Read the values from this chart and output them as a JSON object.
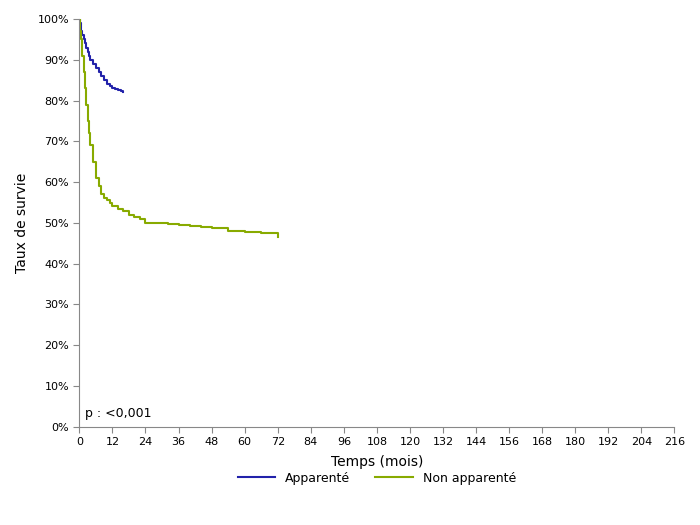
{
  "xlabel": "Temps (mois)",
  "ylabel": "Taux de survie",
  "xlim": [
    0,
    216
  ],
  "ylim": [
    0,
    1.0
  ],
  "xticks": [
    0,
    12,
    24,
    36,
    48,
    60,
    72,
    84,
    96,
    108,
    120,
    132,
    144,
    156,
    168,
    180,
    192,
    204,
    216
  ],
  "yticks": [
    0.0,
    0.1,
    0.2,
    0.3,
    0.4,
    0.5,
    0.6,
    0.7,
    0.8,
    0.9,
    1.0
  ],
  "annotation": "p : <0,001",
  "legend_labels": [
    "Apparenté",
    "Non apparenté"
  ],
  "color_apparente": "#2222aa",
  "color_non_apparente": "#88aa00",
  "background": "#ffffff",
  "apparente_x": [
    0,
    0.4,
    0.7,
    1.0,
    1.5,
    2.0,
    2.5,
    3.0,
    3.5,
    4.0,
    5.0,
    6.0,
    7.0,
    8.0,
    9.0,
    10.0,
    11.0,
    12.0,
    13.0,
    14.0,
    15.0,
    16.0
  ],
  "apparente_y": [
    1.0,
    0.99,
    0.97,
    0.96,
    0.95,
    0.94,
    0.93,
    0.92,
    0.91,
    0.9,
    0.89,
    0.88,
    0.87,
    0.86,
    0.85,
    0.84,
    0.835,
    0.83,
    0.828,
    0.826,
    0.824,
    0.822
  ],
  "non_apparente_x": [
    0,
    0.2,
    0.4,
    0.6,
    0.8,
    1.0,
    1.5,
    2.0,
    2.5,
    3.0,
    3.5,
    4.0,
    5.0,
    6.0,
    7.0,
    8.0,
    9.0,
    10.0,
    11.0,
    12.0,
    14.0,
    16.0,
    18.0,
    20.0,
    22.0,
    24.0,
    28.0,
    32.0,
    36.0,
    40.0,
    44.0,
    48.0,
    54.0,
    60.0,
    66.0,
    72.0
  ],
  "non_apparente_y": [
    1.0,
    0.99,
    0.97,
    0.95,
    0.93,
    0.91,
    0.87,
    0.83,
    0.79,
    0.75,
    0.72,
    0.69,
    0.65,
    0.61,
    0.59,
    0.57,
    0.56,
    0.555,
    0.548,
    0.542,
    0.535,
    0.528,
    0.52,
    0.515,
    0.51,
    0.5,
    0.499,
    0.498,
    0.495,
    0.492,
    0.489,
    0.486,
    0.48,
    0.478,
    0.474,
    0.465
  ]
}
